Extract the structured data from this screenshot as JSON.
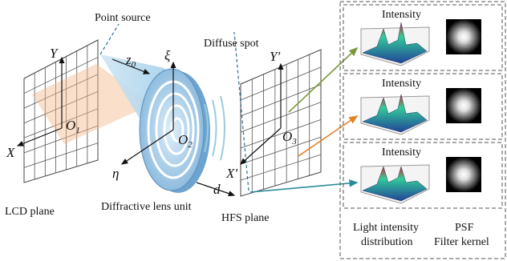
{
  "labels": {
    "point_source": "Point source",
    "diffuse_spot": "Diffuse spot",
    "lcd_plane": "LCD plane",
    "lens_unit": "Diffractive lens unit",
    "hfs_plane": "HFS plane"
  },
  "axes": {
    "y": "Y",
    "x": "X",
    "xi": "ξ",
    "eta": "η",
    "y_prime": "Y'",
    "x_prime": "X'",
    "d": "d",
    "z0": {
      "base": "z",
      "sub": "0"
    },
    "o1": {
      "base": "O",
      "sub": "1"
    },
    "o2": {
      "base": "O",
      "sub": "2"
    },
    "o3": {
      "base": "O",
      "sub": "3"
    }
  },
  "panels": [
    {
      "title": "Intensity"
    },
    {
      "title": "Intensity"
    },
    {
      "title": "Intensity"
    }
  ],
  "footer": {
    "left": [
      "Light intensity",
      "distribution"
    ],
    "right": [
      "PSF",
      "Filter kernel"
    ]
  }
}
